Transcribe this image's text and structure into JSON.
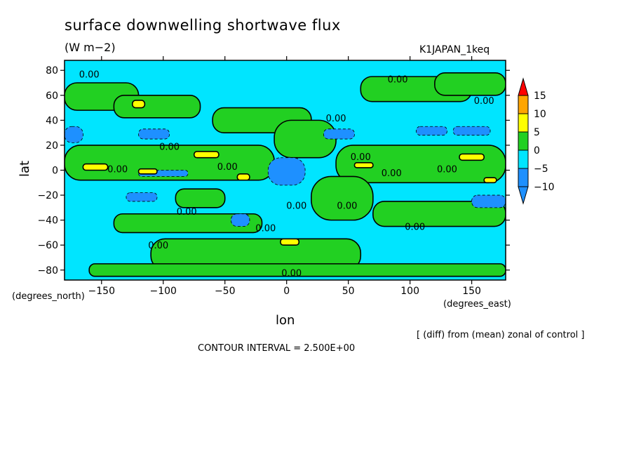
{
  "title": "surface downwelling shortwave flux",
  "units": "(W m−2)",
  "run_label": "K1JAPAN_1keq",
  "note": "[ (diff) from (mean) zonal of control ]",
  "contour_interval": "CONTOUR INTERVAL = 2.500E+00",
  "chart_data": {
    "type": "heatmap",
    "title": "surface downwelling shortwave flux",
    "xlabel": "lon",
    "ylabel": "lat",
    "x_units": "(degrees_east)",
    "y_units": "(degrees_north)",
    "xlim": [
      -180,
      177.5
    ],
    "ylim": [
      -88,
      88
    ],
    "x_ticks": [
      -150,
      -100,
      -50,
      0,
      50,
      100,
      150
    ],
    "x_tick_labels": [
      "−150",
      "−100",
      "−50",
      "0",
      "50",
      "100",
      "150"
    ],
    "y_ticks": [
      80,
      60,
      40,
      20,
      0,
      -20,
      -40,
      -60,
      -80
    ],
    "y_tick_labels": [
      "80",
      "60",
      "40",
      "20",
      "0",
      "−20",
      "−40",
      "−60",
      "−80"
    ],
    "colorbar": {
      "levels": [
        -10,
        -5,
        0,
        5,
        10,
        15
      ],
      "level_labels": [
        "−10",
        "−5",
        "0",
        "5",
        "10",
        "15"
      ],
      "colors": [
        "#1e90ff",
        "#1e90ff",
        "#00e5ff",
        "#22d022",
        "#ffff00",
        "#ffa500",
        "#ff0000"
      ],
      "extend": "both"
    },
    "contour_labels": [
      {
        "lon": -160,
        "lat": 77,
        "text": "0.00"
      },
      {
        "lon": -95,
        "lat": 19,
        "text": "0.00"
      },
      {
        "lon": -137,
        "lat": 1,
        "text": "0.00"
      },
      {
        "lon": -48,
        "lat": 3,
        "text": "0.00"
      },
      {
        "lon": -81,
        "lat": -33,
        "text": "0.00"
      },
      {
        "lon": -104,
        "lat": -60,
        "text": "0.00"
      },
      {
        "lon": -17,
        "lat": -46,
        "text": "0.00"
      },
      {
        "lon": 8,
        "lat": -28,
        "text": "0.00"
      },
      {
        "lon": 49,
        "lat": -28,
        "text": "0.00"
      },
      {
        "lon": 4,
        "lat": -82,
        "text": "0.00"
      },
      {
        "lon": 40,
        "lat": 42,
        "text": "0.00"
      },
      {
        "lon": 90,
        "lat": 73,
        "text": "0.00"
      },
      {
        "lon": 160,
        "lat": 56,
        "text": "0.00"
      },
      {
        "lon": 60,
        "lat": 11,
        "text": "0.00"
      },
      {
        "lon": 85,
        "lat": -2,
        "text": "0.00"
      },
      {
        "lon": 130,
        "lat": 1,
        "text": "0.00"
      },
      {
        "lon": 104,
        "lat": -45,
        "text": "0.00"
      }
    ],
    "regions": [
      {
        "value": 2.5,
        "lon": [
          -180,
          -120
        ],
        "lat": [
          48,
          70
        ]
      },
      {
        "value": 2.5,
        "lon": [
          -140,
          -70
        ],
        "lat": [
          42,
          60
        ]
      },
      {
        "value": 2.5,
        "lon": [
          -60,
          20
        ],
        "lat": [
          30,
          50
        ]
      },
      {
        "value": 2.5,
        "lon": [
          60,
          150
        ],
        "lat": [
          55,
          75
        ]
      },
      {
        "value": 2.5,
        "lon": [
          -180,
          -10
        ],
        "lat": [
          -8,
          20
        ]
      },
      {
        "value": 2.5,
        "lon": [
          40,
          177.5
        ],
        "lat": [
          -10,
          20
        ]
      },
      {
        "value": 2.5,
        "lon": [
          -10,
          40
        ],
        "lat": [
          10,
          40
        ]
      },
      {
        "value": 2.5,
        "lon": [
          20,
          70
        ],
        "lat": [
          -40,
          -5
        ]
      },
      {
        "value": 2.5,
        "lon": [
          -140,
          -20
        ],
        "lat": [
          -50,
          -35
        ]
      },
      {
        "value": 2.5,
        "lon": [
          -110,
          60
        ],
        "lat": [
          -80,
          -55
        ]
      },
      {
        "value": 2.5,
        "lon": [
          70,
          177.5
        ],
        "lat": [
          -45,
          -25
        ]
      },
      {
        "value": 2.5,
        "lon": [
          -160,
          177.5
        ],
        "lat": [
          -85,
          -75
        ]
      },
      {
        "value": 2.5,
        "lon": [
          -90,
          -50
        ],
        "lat": [
          -30,
          -15
        ]
      },
      {
        "value": 2.5,
        "lon": [
          120,
          177.5
        ],
        "lat": [
          60,
          78
        ]
      },
      {
        "value": -7.5,
        "lon": [
          -180,
          -165
        ],
        "lat": [
          22,
          35
        ]
      },
      {
        "value": -7.5,
        "lon": [
          -120,
          -95
        ],
        "lat": [
          25,
          33
        ]
      },
      {
        "value": -7.5,
        "lon": [
          -15,
          15
        ],
        "lat": [
          -12,
          10
        ]
      },
      {
        "value": -7.5,
        "lon": [
          30,
          55
        ],
        "lat": [
          25,
          33
        ]
      },
      {
        "value": -7.5,
        "lon": [
          105,
          130
        ],
        "lat": [
          28,
          35
        ]
      },
      {
        "value": -7.5,
        "lon": [
          135,
          165
        ],
        "lat": [
          28,
          35
        ]
      },
      {
        "value": -7.5,
        "lon": [
          -130,
          -105
        ],
        "lat": [
          -25,
          -18
        ]
      },
      {
        "value": -7.5,
        "lon": [
          -45,
          -30
        ],
        "lat": [
          -45,
          -35
        ]
      },
      {
        "value": -7.5,
        "lon": [
          150,
          177.5
        ],
        "lat": [
          -30,
          -20
        ]
      },
      {
        "value": -7.5,
        "lon": [
          -120,
          -80
        ],
        "lat": [
          -5,
          0
        ]
      },
      {
        "value": 7.5,
        "lon": [
          -125,
          -115
        ],
        "lat": [
          50,
          56
        ]
      },
      {
        "value": 7.5,
        "lon": [
          -75,
          -55
        ],
        "lat": [
          10,
          15
        ]
      },
      {
        "value": 7.5,
        "lon": [
          -165,
          -145
        ],
        "lat": [
          0,
          5
        ]
      },
      {
        "value": 7.5,
        "lon": [
          -5,
          10
        ],
        "lat": [
          -60,
          -55
        ]
      },
      {
        "value": 7.5,
        "lon": [
          55,
          70
        ],
        "lat": [
          2,
          6
        ]
      },
      {
        "value": 7.5,
        "lon": [
          140,
          160
        ],
        "lat": [
          8,
          13
        ]
      },
      {
        "value": 7.5,
        "lon": [
          -40,
          -30
        ],
        "lat": [
          -8,
          -3
        ]
      },
      {
        "value": 7.5,
        "lon": [
          -120,
          -105
        ],
        "lat": [
          -3,
          1
        ]
      },
      {
        "value": 7.5,
        "lon": [
          160,
          170
        ],
        "lat": [
          -10,
          -6
        ]
      }
    ]
  }
}
